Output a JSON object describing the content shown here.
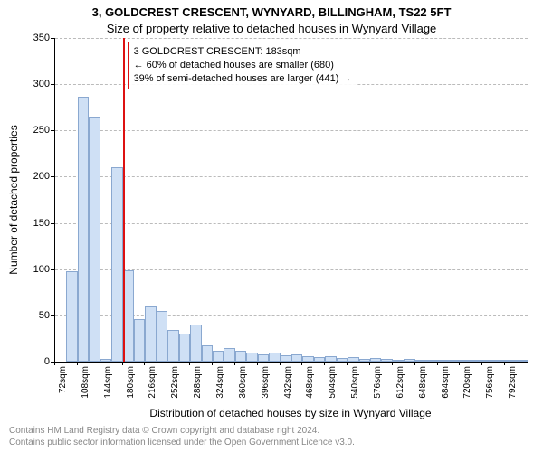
{
  "title_main": "3, GOLDCREST CRESCENT, WYNYARD, BILLINGHAM, TS22 5FT",
  "title_sub": "Size of property relative to detached houses in Wynyard Village",
  "y_label": "Number of detached properties",
  "x_label": "Distribution of detached houses by size in Wynyard Village",
  "chart": {
    "type": "histogram",
    "ylim": [
      0,
      350
    ],
    "ytick_step": 50,
    "x_categories": [
      "72sqm",
      "108sqm",
      "144sqm",
      "180sqm",
      "216sqm",
      "252sqm",
      "288sqm",
      "324sqm",
      "360sqm",
      "396sqm",
      "432sqm",
      "468sqm",
      "504sqm",
      "540sqm",
      "576sqm",
      "612sqm",
      "648sqm",
      "684sqm",
      "720sqm",
      "756sqm",
      "792sqm"
    ],
    "num_bars": 42,
    "values": [
      0,
      98,
      286,
      265,
      3,
      210,
      99,
      46,
      60,
      55,
      34,
      30,
      40,
      18,
      12,
      15,
      12,
      10,
      8,
      10,
      7,
      8,
      6,
      5,
      6,
      4,
      5,
      3,
      4,
      3,
      2,
      3,
      2,
      2,
      2,
      2,
      1,
      2,
      1,
      1,
      1,
      1
    ],
    "bar_fill": "#cfe0f5",
    "bar_border": "#8aa8d0",
    "grid_color": "#bbbbbb",
    "marker_index": 6,
    "marker_color": "#dd1111"
  },
  "annotation": {
    "border_color": "#dd1111",
    "line1": "3 GOLDCREST CRESCENT: 183sqm",
    "line2": "← 60% of detached houses are smaller (680)",
    "line3": "39% of semi-detached houses are larger (441) →"
  },
  "footer": {
    "line1": "Contains HM Land Registry data © Crown copyright and database right 2024.",
    "line2": "Contains public sector information licensed under the Open Government Licence v3.0."
  }
}
